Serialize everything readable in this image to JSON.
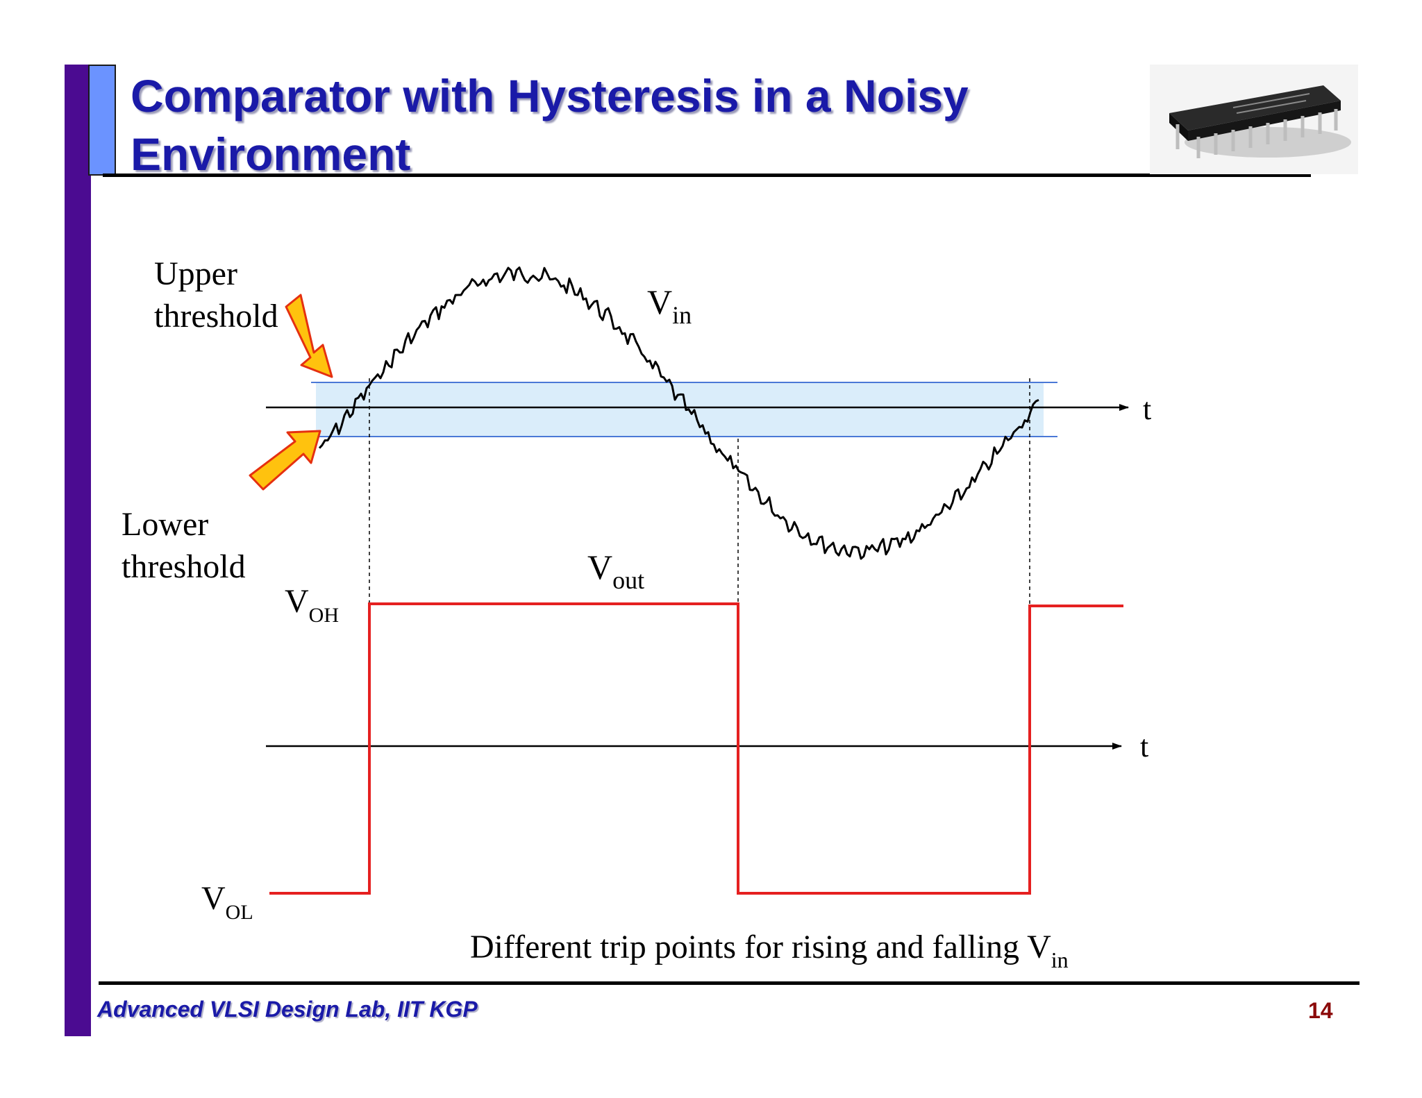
{
  "slide": {
    "title": "Comparator with Hysteresis in a Noisy Environment",
    "footer": "Advanced VLSI Design Lab, IIT KGP",
    "page_number": "14"
  },
  "diagram": {
    "upper_threshold_label": [
      "Upper",
      "threshold"
    ],
    "lower_threshold_label": [
      "Lower",
      "threshold"
    ],
    "vin_label": {
      "main": "V",
      "sub": "in"
    },
    "vout_label": {
      "main": "V",
      "sub": "out"
    },
    "voh_label": {
      "main": "V",
      "sub": "OH"
    },
    "vol_label": {
      "main": "V",
      "sub": "OL"
    },
    "time_axis_label": "t",
    "caption": {
      "main": "Different trip points for rising and falling V",
      "sub": "in"
    }
  },
  "colors": {
    "title": "#1a1aa8",
    "left_bar": "#4b0b91",
    "title_accent": "#6b93ff",
    "hysteresis_band": "#d6ebfa",
    "output_waveform": "#e52020",
    "arrows": "#ffc20e",
    "page_number": "#8b0a0a"
  },
  "icons": {
    "chip_image": "ic-chip-photo"
  }
}
